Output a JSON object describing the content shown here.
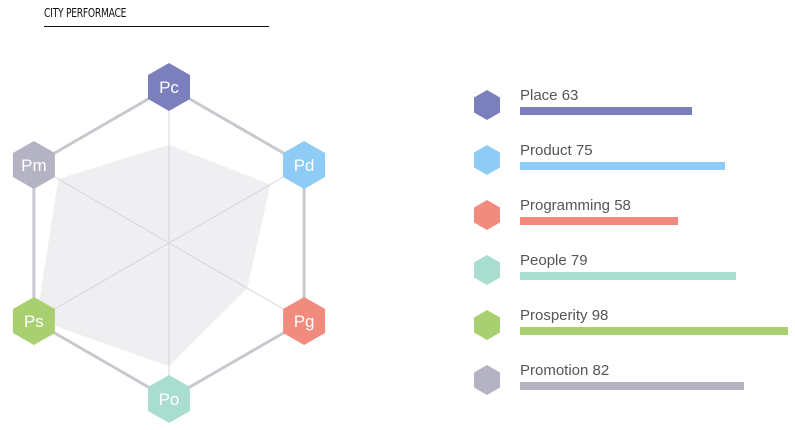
{
  "title": "CITY PERFORMACE",
  "chart_data": {
    "type": "radar",
    "title": "CITY PERFORMACE",
    "range": [
      0,
      100
    ],
    "axes": [
      {
        "abbr": "Pc",
        "name": "Place",
        "value": 63,
        "color": "#7b80bd"
      },
      {
        "abbr": "Pd",
        "name": "Product",
        "value": 75,
        "color": "#8ecbf5"
      },
      {
        "abbr": "Pg",
        "name": "Programming",
        "value": 58,
        "color": "#f08b7e"
      },
      {
        "abbr": "Po",
        "name": "People",
        "value": 79,
        "color": "#a8ddd0"
      },
      {
        "abbr": "Ps",
        "name": "Prosperity",
        "value": 98,
        "color": "#a9d070"
      },
      {
        "abbr": "Pm",
        "name": "Promotion",
        "value": 82,
        "color": "#b4b3c3"
      }
    ],
    "legend": [
      "Place 63",
      "Product 75",
      "Programming 58",
      "People 79",
      "Prosperity 98",
      "Promotion 82"
    ]
  }
}
